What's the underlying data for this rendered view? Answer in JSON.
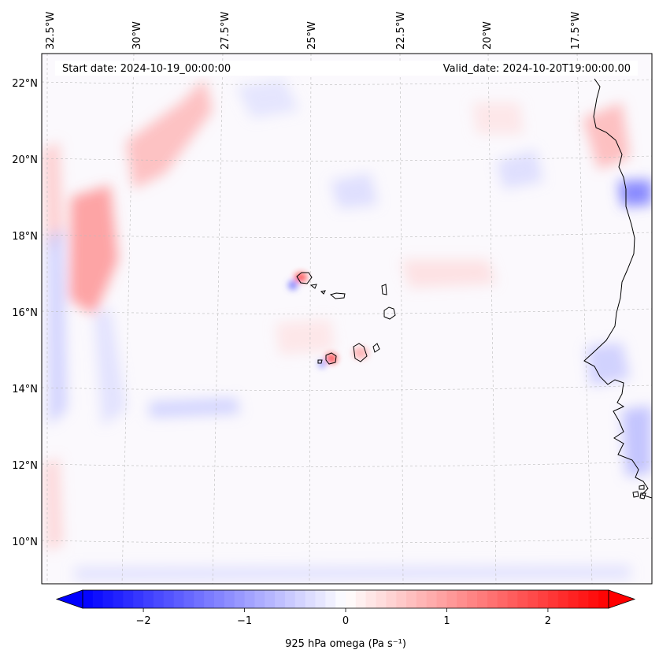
{
  "map": {
    "start_label": "Start date: 2024-10-19_00:00:00",
    "valid_label": "Valid_date: 2024-10-20T19:00:00.00",
    "lon_ticks": [
      "32.5°W",
      "30°W",
      "27.5°W",
      "25°W",
      "22.5°W",
      "20°W",
      "17.5°W"
    ],
    "lat_ticks": [
      "22°N",
      "20°N",
      "18°N",
      "16°N",
      "14°N",
      "12°N",
      "10°N"
    ],
    "colorbar": {
      "label": "925 hPa omega (Pa s⁻¹)",
      "ticks": [
        "−2",
        "−1",
        "0",
        "1",
        "2"
      ],
      "range": [
        -2.6,
        2.6
      ],
      "colormap": "bwr",
      "low_color": "#0000ff",
      "mid_color": "#ffffff",
      "high_color": "#ff0000"
    }
  }
}
